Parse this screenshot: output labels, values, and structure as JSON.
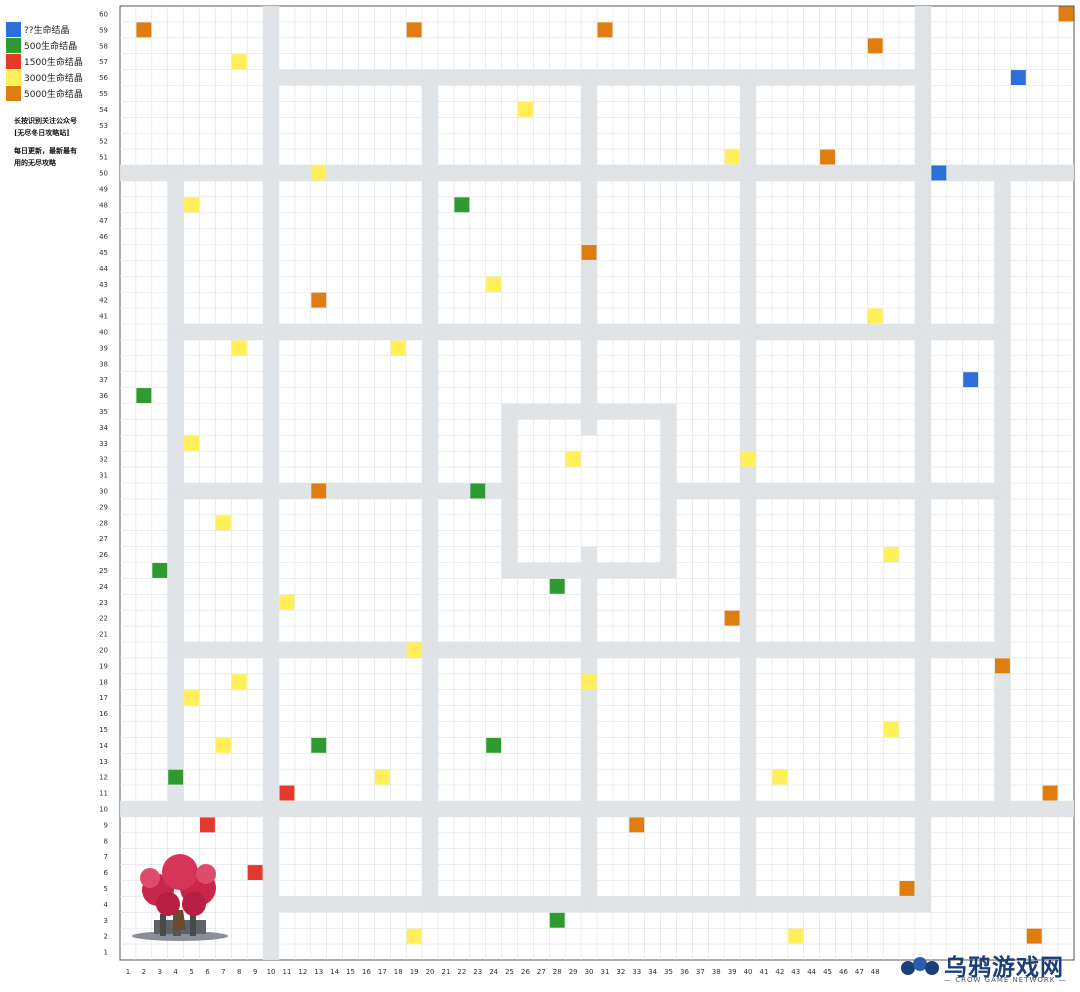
{
  "legend": [
    {
      "label": "??生命结晶",
      "color": "#2c6fd9"
    },
    {
      "label": "500生命结晶",
      "color": "#2f9a2f"
    },
    {
      "label": "1500生命结晶",
      "color": "#e33a2c"
    },
    {
      "label": "3000生命结晶",
      "color": "#fff05a"
    },
    {
      "label": "5000生命结晶",
      "color": "#e07d10"
    }
  ],
  "note": {
    "line1": "长按识别关注公众号",
    "line2": "[无尽冬日攻略站]",
    "line3": "每日更新，最新最有",
    "line4": "用的无尽攻略"
  },
  "watermark": {
    "title": "乌鸦游戏网",
    "subtitle": "— CROW GAME NETWORK —"
  },
  "map": {
    "x_ticks": [
      1,
      2,
      3,
      4,
      5,
      6,
      7,
      8,
      9,
      10,
      11,
      12,
      13,
      14,
      15,
      16,
      17,
      18,
      19,
      20,
      21,
      22,
      23,
      24,
      25,
      26,
      27,
      28,
      29,
      30,
      31,
      32,
      33,
      34,
      35,
      36,
      37,
      38,
      39,
      40,
      41,
      42,
      43,
      44,
      45,
      46,
      47,
      48
    ],
    "y_ticks": [
      1,
      2,
      3,
      4,
      5,
      6,
      7,
      8,
      9,
      10,
      11,
      12,
      13,
      14,
      15,
      16,
      17,
      18,
      19,
      20,
      21,
      22,
      23,
      24,
      25,
      26,
      27,
      28,
      29,
      30,
      31,
      32,
      33,
      34,
      35,
      36,
      37,
      38,
      39,
      40,
      41,
      42,
      43,
      44,
      45,
      46,
      47,
      48,
      49,
      50,
      51,
      52,
      53,
      54,
      55,
      56,
      57,
      58,
      59,
      60
    ],
    "crystals": [
      {
        "x": 2,
        "y": 59,
        "type": "5000"
      },
      {
        "x": 19,
        "y": 59,
        "type": "5000"
      },
      {
        "x": 31,
        "y": 59,
        "type": "5000"
      },
      {
        "x": 60,
        "y": 60,
        "type": "5000"
      },
      {
        "x": 48,
        "y": 58,
        "type": "5000"
      },
      {
        "x": 8,
        "y": 57,
        "type": "3000"
      },
      {
        "x": 57,
        "y": 56,
        "type": "??"
      },
      {
        "x": 26,
        "y": 54,
        "type": "3000"
      },
      {
        "x": 39,
        "y": 51,
        "type": "3000"
      },
      {
        "x": 45,
        "y": 51,
        "type": "5000"
      },
      {
        "x": 13,
        "y": 50,
        "type": "3000"
      },
      {
        "x": 52,
        "y": 50,
        "type": "??"
      },
      {
        "x": 5,
        "y": 48,
        "type": "3000"
      },
      {
        "x": 22,
        "y": 48,
        "type": "500"
      },
      {
        "x": 30,
        "y": 45,
        "type": "5000"
      },
      {
        "x": 24,
        "y": 43,
        "type": "3000"
      },
      {
        "x": 13,
        "y": 42,
        "type": "5000"
      },
      {
        "x": 48,
        "y": 41,
        "type": "3000"
      },
      {
        "x": 8,
        "y": 39,
        "type": "3000"
      },
      {
        "x": 18,
        "y": 39,
        "type": "3000"
      },
      {
        "x": 54,
        "y": 37,
        "type": "??"
      },
      {
        "x": 2,
        "y": 36,
        "type": "500"
      },
      {
        "x": 5,
        "y": 33,
        "type": "3000"
      },
      {
        "x": 29,
        "y": 32,
        "type": "3000"
      },
      {
        "x": 40,
        "y": 32,
        "type": "3000"
      },
      {
        "x": 13,
        "y": 30,
        "type": "5000"
      },
      {
        "x": 23,
        "y": 30,
        "type": "500"
      },
      {
        "x": 7,
        "y": 28,
        "type": "3000"
      },
      {
        "x": 49,
        "y": 26,
        "type": "3000"
      },
      {
        "x": 3,
        "y": 25,
        "type": "500"
      },
      {
        "x": 28,
        "y": 24,
        "type": "500"
      },
      {
        "x": 11,
        "y": 23,
        "type": "3000"
      },
      {
        "x": 39,
        "y": 22,
        "type": "5000"
      },
      {
        "x": 19,
        "y": 20,
        "type": "3000"
      },
      {
        "x": 56,
        "y": 19,
        "type": "5000"
      },
      {
        "x": 8,
        "y": 18,
        "type": "3000"
      },
      {
        "x": 30,
        "y": 18,
        "type": "3000"
      },
      {
        "x": 5,
        "y": 17,
        "type": "3000"
      },
      {
        "x": 49,
        "y": 15,
        "type": "3000"
      },
      {
        "x": 7,
        "y": 14,
        "type": "3000"
      },
      {
        "x": 13,
        "y": 14,
        "type": "500"
      },
      {
        "x": 24,
        "y": 14,
        "type": "500"
      },
      {
        "x": 4,
        "y": 12,
        "type": "500"
      },
      {
        "x": 17,
        "y": 12,
        "type": "3000"
      },
      {
        "x": 42,
        "y": 12,
        "type": "3000"
      },
      {
        "x": 11,
        "y": 11,
        "type": "1500"
      },
      {
        "x": 59,
        "y": 11,
        "type": "5000"
      },
      {
        "x": 6,
        "y": 9,
        "type": "1500"
      },
      {
        "x": 33,
        "y": 9,
        "type": "5000"
      },
      {
        "x": 9,
        "y": 6,
        "type": "1500"
      },
      {
        "x": 50,
        "y": 5,
        "type": "5000"
      },
      {
        "x": 28,
        "y": 3,
        "type": "500"
      },
      {
        "x": 19,
        "y": 2,
        "type": "3000"
      },
      {
        "x": 43,
        "y": 2,
        "type": "3000"
      },
      {
        "x": 58,
        "y": 2,
        "type": "5000"
      }
    ],
    "colors": {
      "??": "#2c6fd9",
      "500": "#2f9a2f",
      "1500": "#e33a2c",
      "3000": "#fff05a",
      "5000": "#e07d10"
    }
  }
}
